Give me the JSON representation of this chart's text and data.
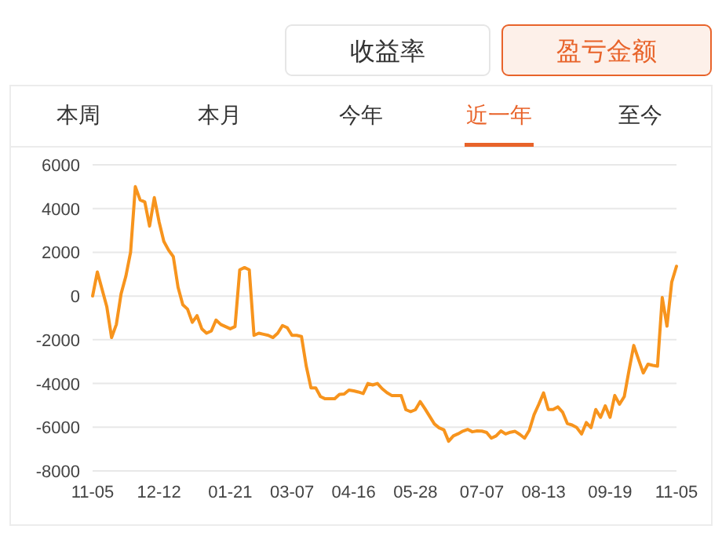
{
  "chart_data": {
    "type": "line",
    "annotations": [
      "收益率",
      "盈亏金额",
      "本周",
      "本月",
      "今年",
      "近一年",
      "至今"
    ],
    "categories": [
      "11-05",
      null,
      null,
      null,
      null,
      null,
      null,
      null,
      null,
      null,
      null,
      null,
      null,
      null,
      "12-12",
      null,
      null,
      null,
      null,
      null,
      null,
      null,
      null,
      null,
      null,
      null,
      null,
      null,
      null,
      "01-21",
      null,
      null,
      null,
      null,
      null,
      null,
      null,
      null,
      null,
      null,
      null,
      null,
      "03-07",
      null,
      null,
      null,
      null,
      null,
      null,
      null,
      null,
      null,
      null,
      null,
      null,
      "04-16",
      null,
      null,
      null,
      null,
      null,
      null,
      null,
      null,
      null,
      null,
      null,
      null,
      "05-28",
      null,
      null,
      null,
      null,
      null,
      null,
      null,
      null,
      null,
      null,
      null,
      null,
      null,
      "07-07",
      null,
      null,
      null,
      null,
      null,
      null,
      null,
      null,
      null,
      null,
      null,
      null,
      "08-13",
      null,
      null,
      null,
      null,
      null,
      null,
      null,
      null,
      null,
      null,
      null,
      null,
      null,
      "09-19",
      null,
      null,
      null,
      null,
      null,
      null,
      null,
      null,
      null,
      null,
      null,
      null,
      null,
      "11-05"
    ],
    "ylim": [
      -8000,
      6000
    ],
    "yticks": [
      6000,
      4000,
      2000,
      0,
      -2000,
      -4000,
      -6000,
      -8000
    ],
    "grid": "y",
    "marker": "none",
    "line_style": "solid",
    "series": [
      {
        "color": "#f7941d",
        "values": [
          0,
          1100,
          300,
          -500,
          -1900,
          -1300,
          100,
          900,
          2000,
          5000,
          4400,
          4300,
          3200,
          4500,
          3400,
          2500,
          2100,
          1800,
          400,
          -400,
          -600,
          -1200,
          -900,
          -1500,
          -1700,
          -1600,
          -1100,
          -1300,
          -1400,
          -1500,
          -1400,
          1200,
          1300,
          1200,
          -1800,
          -1700,
          -1750,
          -1800,
          -1900,
          -1700,
          -1350,
          -1450,
          -1800,
          -1800,
          -1850,
          -3200,
          -4200,
          -4200,
          -4600,
          -4700,
          -4700,
          -4700,
          -4500,
          -4480,
          -4300,
          -4340,
          -4390,
          -4460,
          -4000,
          -4070,
          -4000,
          -4240,
          -4420,
          -4550,
          -4550,
          -4550,
          -5200,
          -5290,
          -5200,
          -4830,
          -5150,
          -5500,
          -5850,
          -6030,
          -6120,
          -6640,
          -6400,
          -6300,
          -6180,
          -6100,
          -6210,
          -6170,
          -6180,
          -6240,
          -6500,
          -6400,
          -6170,
          -6310,
          -6230,
          -6190,
          -6330,
          -6500,
          -6140,
          -5430,
          -4950,
          -4430,
          -5190,
          -5190,
          -5070,
          -5310,
          -5830,
          -5900,
          -6020,
          -6310,
          -5790,
          -6020,
          -5190,
          -5550,
          -5020,
          -5550,
          -4550,
          -4950,
          -4600,
          -3400,
          -2260,
          -2900,
          -3520,
          -3120,
          -3170,
          -3210,
          -70,
          -1380,
          640,
          1360
        ]
      }
    ]
  }
}
